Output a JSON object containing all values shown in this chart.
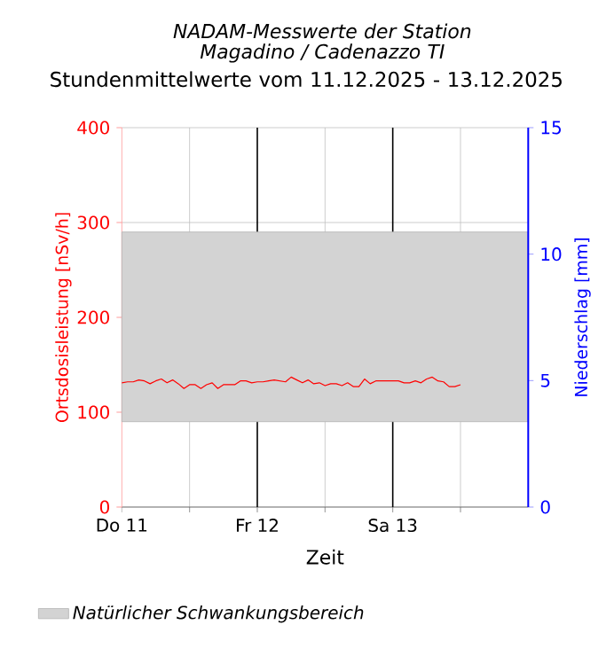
{
  "chart_data": {
    "type": "line",
    "title": "NADAM-Messwerte der Station Magadino / Cadenazzo TI",
    "subtitle": "Stundenmittelwerte vom 11.12.2025 - 13.12.2025",
    "xlabel": "Zeit",
    "ylabel": "Ortsdosisleistung [nSv/h]",
    "y2label": "Niederschlag [mm]",
    "x": [
      "2025-12-11T00:00",
      "2025-12-11T01:00",
      "2025-12-11T02:00",
      "2025-12-11T03:00",
      "2025-12-11T04:00",
      "2025-12-11T05:00",
      "2025-12-11T06:00",
      "2025-12-11T07:00",
      "2025-12-11T08:00",
      "2025-12-11T09:00",
      "2025-12-11T10:00",
      "2025-12-11T11:00",
      "2025-12-11T12:00",
      "2025-12-11T13:00",
      "2025-12-11T14:00",
      "2025-12-11T15:00",
      "2025-12-11T16:00",
      "2025-12-11T17:00",
      "2025-12-11T18:00",
      "2025-12-11T19:00",
      "2025-12-11T20:00",
      "2025-12-11T21:00",
      "2025-12-11T22:00",
      "2025-12-11T23:00",
      "2025-12-12T00:00",
      "2025-12-12T01:00",
      "2025-12-12T02:00",
      "2025-12-12T03:00",
      "2025-12-12T04:00",
      "2025-12-12T05:00",
      "2025-12-12T06:00",
      "2025-12-12T07:00",
      "2025-12-12T08:00",
      "2025-12-12T09:00",
      "2025-12-12T10:00",
      "2025-12-12T11:00",
      "2025-12-12T12:00",
      "2025-12-12T13:00",
      "2025-12-12T14:00",
      "2025-12-12T15:00",
      "2025-12-12T16:00",
      "2025-12-12T17:00",
      "2025-12-12T18:00",
      "2025-12-12T19:00",
      "2025-12-12T20:00",
      "2025-12-12T21:00",
      "2025-12-12T22:00",
      "2025-12-12T23:00",
      "2025-12-13T00:00",
      "2025-12-13T01:00",
      "2025-12-13T02:00",
      "2025-12-13T03:00",
      "2025-12-13T04:00",
      "2025-12-13T05:00",
      "2025-12-13T06:00",
      "2025-12-13T07:00",
      "2025-12-13T08:00",
      "2025-12-13T09:00",
      "2025-12-13T10:00",
      "2025-12-13T11:00",
      "2025-12-13T12:00"
    ],
    "series": [
      {
        "color": "#ff0000",
        "values": [
          131,
          132,
          132,
          134,
          133,
          130,
          133,
          135,
          131,
          134,
          130,
          125,
          129,
          129,
          125,
          129,
          131,
          125,
          129,
          129,
          129,
          133,
          133,
          131,
          132,
          132,
          133,
          134,
          133,
          132,
          137,
          134,
          131,
          134,
          130,
          131,
          128,
          130,
          130,
          128,
          131,
          127,
          127,
          135,
          130,
          133,
          133,
          133,
          133,
          133,
          131,
          131,
          133,
          131,
          135,
          137,
          133,
          132,
          127,
          127,
          129
        ]
      }
    ],
    "xlim": [
      "2025-12-11T00:00",
      "2025-12-14T00:00"
    ],
    "xticks": [
      {
        "value": "2025-12-11T00:00",
        "label": "Do 11"
      },
      {
        "value": "2025-12-11T12:00",
        "label": null
      },
      {
        "value": "2025-12-12T00:00",
        "label": "Fr 12"
      },
      {
        "value": "2025-12-12T12:00",
        "label": null
      },
      {
        "value": "2025-12-13T00:00",
        "label": "Sa 13"
      },
      {
        "value": "2025-12-13T12:00",
        "label": null
      }
    ],
    "ylim": [
      0,
      400
    ],
    "yticks": [
      0,
      100,
      200,
      300,
      400
    ],
    "y2lim": [
      0,
      15
    ],
    "y2ticks": [
      0,
      5,
      10,
      15
    ],
    "bands": [
      {
        "axis": "y",
        "from": 90,
        "to": 290,
        "label": "Natürlicher Schwankungsbereich",
        "color": "#d3d3d3"
      }
    ],
    "grid": true,
    "legend": "bottom"
  }
}
